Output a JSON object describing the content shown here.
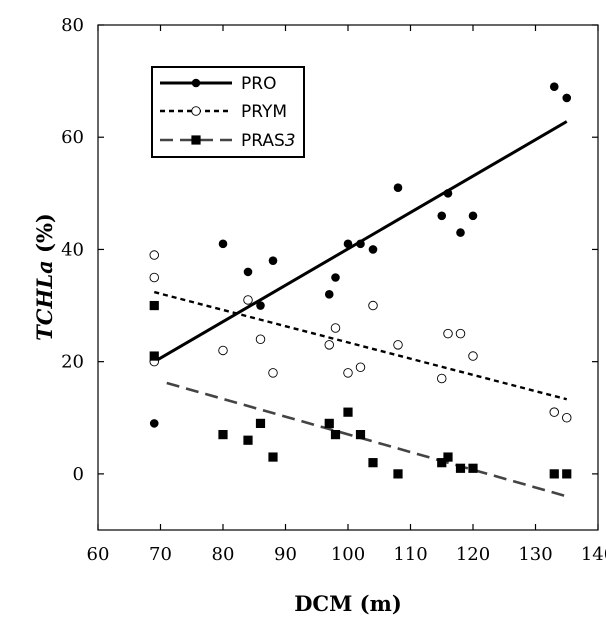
{
  "chart_data": {
    "type": "scatter",
    "xlabel": "DCM (m)",
    "ylabel_prefix": "TCHL",
    "ylabel_italic": "a",
    "ylabel_suffix": " (%)",
    "xlim": [
      60,
      140
    ],
    "ylim": [
      -10,
      80
    ],
    "x_ticks": [
      60,
      70,
      80,
      90,
      100,
      110,
      120,
      130,
      140
    ],
    "y_ticks": [
      0,
      20,
      40,
      60,
      80
    ],
    "grid": false,
    "legend_position": "top-left",
    "series": [
      {
        "name": "PRO",
        "legend_label": "PRO",
        "marker": "filled-circle",
        "line_style": "solid",
        "color": "#000000",
        "points": [
          [
            69,
            9
          ],
          [
            69,
            20
          ],
          [
            80,
            41
          ],
          [
            84,
            36
          ],
          [
            86,
            30
          ],
          [
            88,
            38
          ],
          [
            97,
            32
          ],
          [
            98,
            35
          ],
          [
            100,
            41
          ],
          [
            102,
            41
          ],
          [
            104,
            40
          ],
          [
            108,
            51
          ],
          [
            115,
            46
          ],
          [
            116,
            50
          ],
          [
            118,
            43
          ],
          [
            120,
            46
          ],
          [
            133,
            69
          ],
          [
            135,
            67
          ]
        ],
        "fit": [
          [
            69,
            20
          ],
          [
            135,
            62.8
          ]
        ]
      },
      {
        "name": "PRYM",
        "legend_label": "PRYM",
        "marker": "open-circle",
        "line_style": "dotted",
        "color": "#000000",
        "points": [
          [
            69,
            39
          ],
          [
            69,
            35
          ],
          [
            69,
            20
          ],
          [
            80,
            22
          ],
          [
            84,
            31
          ],
          [
            86,
            24
          ],
          [
            88,
            18
          ],
          [
            97,
            23
          ],
          [
            98,
            26
          ],
          [
            100,
            18
          ],
          [
            102,
            19
          ],
          [
            104,
            30
          ],
          [
            108,
            23
          ],
          [
            115,
            17
          ],
          [
            116,
            25
          ],
          [
            118,
            25
          ],
          [
            120,
            21
          ],
          [
            133,
            11
          ],
          [
            135,
            10
          ]
        ],
        "fit": [
          [
            69,
            32.4
          ],
          [
            135,
            13.3
          ]
        ]
      },
      {
        "name": "PRAS3",
        "legend_label_main": "PRAS",
        "legend_label_italic": "3",
        "marker": "filled-square",
        "line_style": "dashed",
        "color": "#000000",
        "fit_color": "#444444",
        "points": [
          [
            69,
            30
          ],
          [
            69,
            21
          ],
          [
            80,
            7
          ],
          [
            84,
            6
          ],
          [
            86,
            9
          ],
          [
            88,
            3
          ],
          [
            97,
            9
          ],
          [
            98,
            7
          ],
          [
            100,
            11
          ],
          [
            102,
            7
          ],
          [
            104,
            2
          ],
          [
            108,
            0
          ],
          [
            115,
            2
          ],
          [
            116,
            3
          ],
          [
            118,
            1
          ],
          [
            120,
            1
          ],
          [
            133,
            0
          ],
          [
            135,
            0
          ]
        ],
        "fit": [
          [
            71,
            16.2
          ],
          [
            135,
            -4
          ]
        ]
      }
    ]
  }
}
